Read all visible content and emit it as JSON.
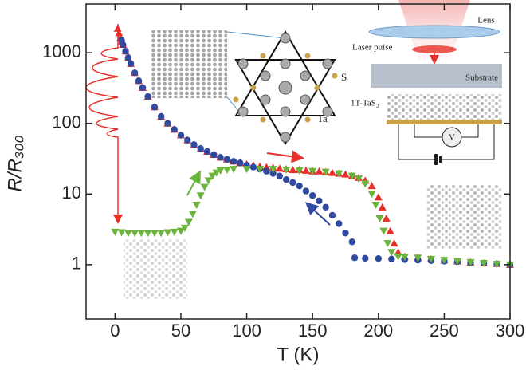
{
  "chart_data": {
    "type": "scatter",
    "x_label": "T (K)",
    "y_label": "R/R₃₀₀",
    "xlim": [
      -22,
      300
    ],
    "ylim": [
      0.17,
      4900
    ],
    "xticks": [
      0,
      50,
      100,
      150,
      200,
      250,
      300
    ],
    "yticks": [
      1,
      10,
      100,
      1000
    ],
    "y_scale": "log",
    "series": [
      {
        "color": "#e8302a",
        "marker": "triangle-up",
        "x": [
          2,
          3,
          4,
          5,
          6,
          8,
          10,
          12,
          15,
          18,
          21,
          25,
          30,
          35,
          40,
          45,
          50,
          55,
          60,
          65,
          70,
          75,
          80,
          85,
          90,
          95,
          100,
          105,
          110,
          115,
          120,
          125,
          130,
          135,
          140,
          145,
          150,
          155,
          160,
          165,
          170,
          175,
          180,
          185,
          190,
          195,
          200,
          203,
          206,
          209,
          212,
          215,
          220,
          230,
          240,
          250,
          260,
          270,
          280,
          290,
          300
        ],
        "values": [
          2200,
          1900,
          1600,
          1450,
          1300,
          1050,
          850,
          700,
          520,
          400,
          320,
          240,
          170,
          125,
          100,
          82,
          68,
          58,
          50,
          44,
          40,
          36,
          33,
          31,
          29,
          27.5,
          26.5,
          25.5,
          24.5,
          24,
          23.5,
          23,
          22.5,
          22,
          22,
          21.5,
          21,
          21,
          20.5,
          20,
          19.5,
          19,
          18,
          17,
          15.5,
          13,
          9,
          6.5,
          4.5,
          3,
          2,
          1.5,
          1.3,
          1.25,
          1.2,
          1.15,
          1.12,
          1.08,
          1.05,
          1.03,
          1.0
        ]
      },
      {
        "color": "#2f4aa0",
        "marker": "circle",
        "x": [
          5,
          6,
          8,
          10,
          12,
          15,
          18,
          21,
          25,
          30,
          35,
          40,
          45,
          50,
          55,
          60,
          65,
          70,
          75,
          80,
          85,
          90,
          95,
          100,
          105,
          110,
          115,
          120,
          125,
          130,
          135,
          140,
          145,
          150,
          155,
          160,
          165,
          170,
          175,
          180,
          182,
          190,
          200,
          210,
          220,
          230,
          240,
          250,
          260,
          270,
          280,
          290,
          300
        ],
        "values": [
          1500,
          1300,
          1050,
          850,
          700,
          520,
          400,
          320,
          240,
          170,
          125,
          100,
          82,
          68,
          58,
          50,
          44,
          40,
          36,
          33,
          31,
          29,
          27.5,
          25.5,
          24,
          22.5,
          21,
          19.5,
          18,
          16,
          14.5,
          13,
          11,
          9.5,
          8,
          6.5,
          5,
          3.8,
          2.8,
          2.1,
          1.25,
          1.23,
          1.22,
          1.2,
          1.18,
          1.16,
          1.14,
          1.12,
          1.1,
          1.07,
          1.05,
          1.03,
          1.0
        ]
      },
      {
        "color": "#6ab43c",
        "marker": "triangle-down",
        "x": [
          0,
          5,
          10,
          15,
          20,
          25,
          30,
          35,
          40,
          45,
          50,
          53,
          56,
          59,
          62,
          65,
          68,
          71,
          74,
          77,
          80,
          85,
          90,
          100,
          110,
          120,
          130,
          140,
          150,
          160,
          170,
          180,
          185,
          190,
          195,
          198,
          201,
          204,
          207,
          210,
          215,
          220,
          230,
          240,
          250,
          260,
          270,
          280,
          290,
          300
        ],
        "values": [
          2.9,
          2.85,
          2.8,
          2.8,
          2.8,
          2.8,
          2.8,
          2.8,
          2.85,
          2.9,
          3.0,
          3.3,
          4,
          5.2,
          7,
          9.5,
          12.5,
          15.5,
          18,
          20,
          21.5,
          22,
          22.5,
          22.5,
          22.5,
          22.5,
          22,
          21.5,
          21,
          20.5,
          19.5,
          18,
          16.5,
          14,
          10,
          7,
          4.5,
          3,
          2,
          1.5,
          1.3,
          1.28,
          1.25,
          1.2,
          1.16,
          1.12,
          1.08,
          1.05,
          1.02,
          1.0
        ]
      }
    ],
    "annotations": {
      "lens": "Lens",
      "laser_pulse": "Laser pulse",
      "substrate": "Substrate",
      "material": "1T-TaS₂",
      "voltmeter": "V",
      "sulfur": "S",
      "tantalum": "Ta"
    }
  }
}
